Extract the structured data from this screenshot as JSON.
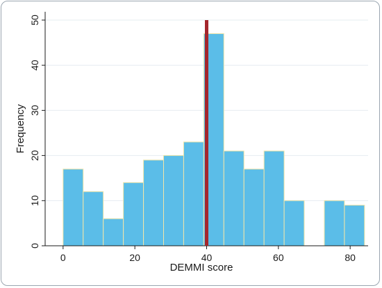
{
  "chart_data": {
    "type": "bar",
    "xlabel": "DEMMI score",
    "ylabel": "Frequency",
    "xlim": [
      -5,
      85
    ],
    "ylim": [
      0,
      50
    ],
    "x_ticks": [
      0,
      20,
      40,
      60,
      80
    ],
    "y_ticks": [
      0,
      10,
      20,
      30,
      40,
      50
    ],
    "bin_width": 5.6,
    "bins": [
      {
        "start": 0.0,
        "value": 17
      },
      {
        "start": 5.6,
        "value": 12
      },
      {
        "start": 11.2,
        "value": 6
      },
      {
        "start": 16.8,
        "value": 14
      },
      {
        "start": 22.4,
        "value": 19
      },
      {
        "start": 28.0,
        "value": 20
      },
      {
        "start": 33.6,
        "value": 23
      },
      {
        "start": 39.2,
        "value": 47
      },
      {
        "start": 44.8,
        "value": 21
      },
      {
        "start": 50.4,
        "value": 17
      },
      {
        "start": 56.0,
        "value": 21
      },
      {
        "start": 61.6,
        "value": 10
      },
      {
        "start": 67.2,
        "value": 0
      },
      {
        "start": 72.8,
        "value": 10
      },
      {
        "start": 78.4,
        "value": 9
      }
    ],
    "reference_line": {
      "x": 40,
      "color": "#a4262c"
    },
    "bar_color": "#5bbde8",
    "bar_edge_color": "#f3e6a8",
    "grid": true
  }
}
